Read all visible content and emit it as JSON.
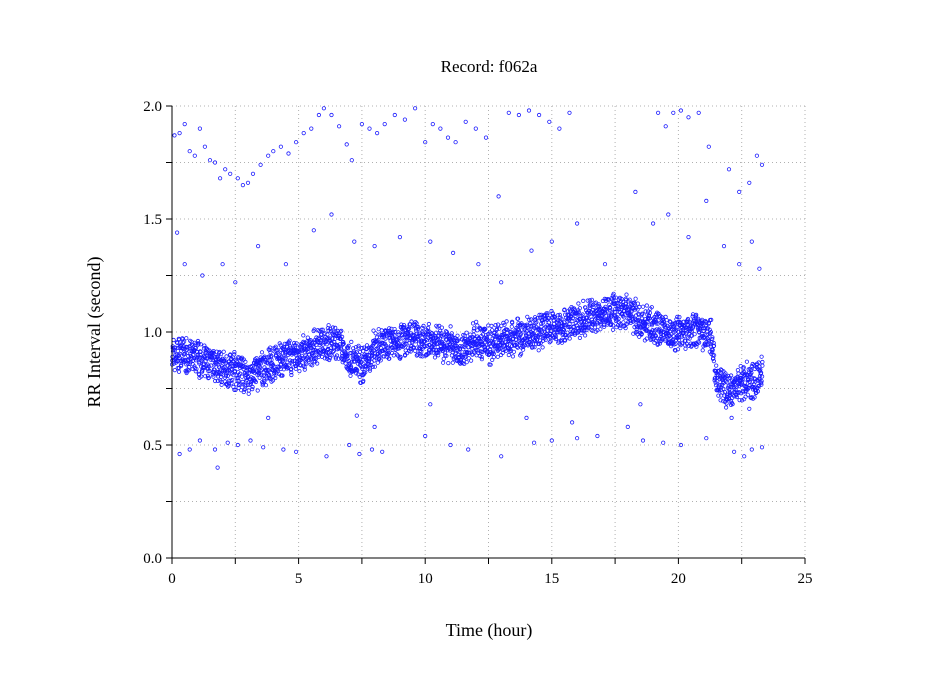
{
  "chart_data": {
    "type": "scatter",
    "title": "Record:  f062a",
    "xlabel": "Time (hour)",
    "ylabel": "RR Interval (second)",
    "xlim": [
      0,
      25
    ],
    "ylim": [
      0.0,
      2.0
    ],
    "x_ticks": [
      "0",
      "5",
      "10",
      "15",
      "20",
      "25"
    ],
    "y_ticks": [
      "0.0",
      "0.5",
      "1.0",
      "1.5",
      "2.0"
    ],
    "grid": true,
    "marker": "open-circle",
    "color": "#1a1aff",
    "series": [
      {
        "baseline_trend": [
          [
            0.0,
            0.9
          ],
          [
            0.5,
            0.9
          ],
          [
            1.0,
            0.88
          ],
          [
            1.5,
            0.86
          ],
          [
            2.0,
            0.84
          ],
          [
            2.5,
            0.83
          ],
          [
            3.0,
            0.8
          ],
          [
            3.5,
            0.83
          ],
          [
            4.0,
            0.86
          ],
          [
            4.5,
            0.88
          ],
          [
            5.0,
            0.89
          ],
          [
            5.5,
            0.92
          ],
          [
            6.0,
            0.96
          ],
          [
            6.5,
            0.95
          ],
          [
            7.0,
            0.88
          ],
          [
            7.5,
            0.85
          ],
          [
            8.0,
            0.93
          ],
          [
            8.5,
            0.96
          ],
          [
            9.0,
            0.96
          ],
          [
            9.5,
            0.97
          ],
          [
            10.0,
            0.96
          ],
          [
            10.5,
            0.96
          ],
          [
            11.0,
            0.94
          ],
          [
            11.5,
            0.92
          ],
          [
            12.0,
            0.96
          ],
          [
            12.5,
            0.94
          ],
          [
            13.0,
            0.97
          ],
          [
            13.5,
            0.98
          ],
          [
            14.0,
            0.99
          ],
          [
            14.5,
            1.0
          ],
          [
            15.0,
            1.02
          ],
          [
            15.5,
            1.03
          ],
          [
            16.0,
            1.05
          ],
          [
            16.5,
            1.07
          ],
          [
            17.0,
            1.08
          ],
          [
            17.5,
            1.1
          ],
          [
            18.0,
            1.09
          ],
          [
            18.5,
            1.05
          ],
          [
            19.0,
            1.02
          ],
          [
            19.5,
            1.0
          ],
          [
            20.0,
            1.0
          ],
          [
            20.5,
            1.0
          ],
          [
            21.0,
            0.99
          ],
          [
            21.3,
            0.98
          ],
          [
            21.5,
            0.78
          ],
          [
            22.0,
            0.74
          ],
          [
            22.5,
            0.78
          ],
          [
            23.0,
            0.79
          ],
          [
            23.3,
            0.83
          ]
        ],
        "outliers": [
          [
            0.1,
            1.87
          ],
          [
            0.3,
            1.88
          ],
          [
            0.5,
            1.92
          ],
          [
            0.7,
            1.8
          ],
          [
            0.9,
            1.78
          ],
          [
            1.1,
            1.9
          ],
          [
            1.3,
            1.82
          ],
          [
            1.5,
            1.76
          ],
          [
            1.7,
            1.75
          ],
          [
            1.9,
            1.68
          ],
          [
            2.1,
            1.72
          ],
          [
            2.3,
            1.7
          ],
          [
            2.6,
            1.68
          ],
          [
            2.8,
            1.65
          ],
          [
            3.0,
            1.66
          ],
          [
            3.2,
            1.7
          ],
          [
            3.5,
            1.74
          ],
          [
            3.8,
            1.78
          ],
          [
            4.0,
            1.8
          ],
          [
            4.3,
            1.82
          ],
          [
            4.6,
            1.79
          ],
          [
            4.9,
            1.84
          ],
          [
            5.2,
            1.88
          ],
          [
            5.5,
            1.9
          ],
          [
            5.8,
            1.96
          ],
          [
            6.0,
            1.99
          ],
          [
            6.3,
            1.96
          ],
          [
            6.6,
            1.91
          ],
          [
            6.9,
            1.83
          ],
          [
            7.1,
            1.76
          ],
          [
            7.5,
            1.92
          ],
          [
            7.8,
            1.9
          ],
          [
            8.1,
            1.88
          ],
          [
            8.4,
            1.92
          ],
          [
            8.8,
            1.96
          ],
          [
            9.2,
            1.94
          ],
          [
            9.6,
            1.99
          ],
          [
            10.0,
            1.84
          ],
          [
            10.3,
            1.92
          ],
          [
            10.6,
            1.9
          ],
          [
            10.9,
            1.86
          ],
          [
            11.2,
            1.84
          ],
          [
            11.6,
            1.93
          ],
          [
            12.0,
            1.9
          ],
          [
            12.4,
            1.86
          ],
          [
            12.9,
            1.6
          ],
          [
            13.3,
            1.97
          ],
          [
            13.7,
            1.96
          ],
          [
            14.1,
            1.98
          ],
          [
            14.5,
            1.96
          ],
          [
            14.9,
            1.93
          ],
          [
            15.3,
            1.9
          ],
          [
            15.7,
            1.97
          ],
          [
            19.2,
            1.97
          ],
          [
            19.5,
            1.91
          ],
          [
            19.8,
            1.97
          ],
          [
            20.1,
            1.98
          ],
          [
            20.4,
            1.95
          ],
          [
            20.8,
            1.97
          ],
          [
            21.2,
            1.82
          ],
          [
            22.0,
            1.72
          ],
          [
            22.4,
            1.62
          ],
          [
            22.8,
            1.66
          ],
          [
            23.1,
            1.78
          ],
          [
            23.3,
            1.74
          ],
          [
            0.2,
            1.44
          ],
          [
            0.5,
            1.3
          ],
          [
            1.2,
            1.25
          ],
          [
            2.0,
            1.3
          ],
          [
            2.5,
            1.22
          ],
          [
            3.4,
            1.38
          ],
          [
            4.5,
            1.3
          ],
          [
            5.6,
            1.45
          ],
          [
            6.3,
            1.52
          ],
          [
            7.2,
            1.4
          ],
          [
            8.0,
            1.38
          ],
          [
            9.0,
            1.42
          ],
          [
            10.2,
            1.4
          ],
          [
            11.1,
            1.35
          ],
          [
            12.1,
            1.3
          ],
          [
            13.0,
            1.22
          ],
          [
            14.2,
            1.36
          ],
          [
            15.0,
            1.4
          ],
          [
            16.0,
            1.48
          ],
          [
            17.1,
            1.3
          ],
          [
            18.3,
            1.62
          ],
          [
            19.0,
            1.48
          ],
          [
            19.6,
            1.52
          ],
          [
            20.4,
            1.42
          ],
          [
            21.1,
            1.58
          ],
          [
            21.8,
            1.38
          ],
          [
            22.4,
            1.3
          ],
          [
            22.9,
            1.4
          ],
          [
            23.2,
            1.28
          ],
          [
            0.3,
            0.46
          ],
          [
            0.7,
            0.48
          ],
          [
            1.1,
            0.52
          ],
          [
            1.7,
            0.48
          ],
          [
            2.2,
            0.51
          ],
          [
            2.6,
            0.5
          ],
          [
            3.1,
            0.52
          ],
          [
            3.6,
            0.49
          ],
          [
            4.4,
            0.48
          ],
          [
            4.9,
            0.47
          ],
          [
            6.1,
            0.45
          ],
          [
            7.0,
            0.5
          ],
          [
            7.4,
            0.46
          ],
          [
            7.9,
            0.48
          ],
          [
            8.3,
            0.47
          ],
          [
            10.0,
            0.54
          ],
          [
            11.0,
            0.5
          ],
          [
            11.7,
            0.48
          ],
          [
            13.0,
            0.45
          ],
          [
            14.3,
            0.51
          ],
          [
            15.0,
            0.52
          ],
          [
            16.0,
            0.53
          ],
          [
            16.8,
            0.54
          ],
          [
            18.0,
            0.58
          ],
          [
            18.6,
            0.52
          ],
          [
            19.4,
            0.51
          ],
          [
            20.1,
            0.5
          ],
          [
            21.1,
            0.53
          ],
          [
            22.2,
            0.47
          ],
          [
            22.6,
            0.45
          ],
          [
            22.9,
            0.48
          ],
          [
            23.3,
            0.49
          ],
          [
            1.8,
            0.4
          ],
          [
            3.8,
            0.62
          ],
          [
            7.3,
            0.63
          ],
          [
            8.0,
            0.58
          ],
          [
            10.2,
            0.68
          ],
          [
            14.0,
            0.62
          ],
          [
            15.8,
            0.6
          ],
          [
            18.5,
            0.68
          ],
          [
            22.1,
            0.62
          ],
          [
            22.8,
            0.66
          ]
        ]
      }
    ]
  }
}
